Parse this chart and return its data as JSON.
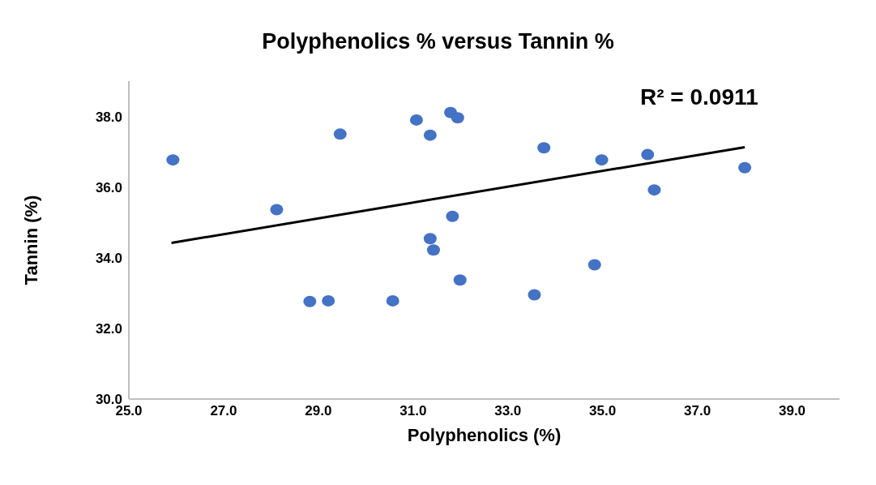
{
  "chart_data": {
    "type": "scatter",
    "title": "Polyphenolics %  versus Tannin %",
    "xlabel": "Polyphenolics (%)",
    "ylabel": "Tannin (%)",
    "annotations": [
      "R² = 0.0911"
    ],
    "series": [
      {
        "color": "#4472c4",
        "marker": "circle",
        "x": [
          25.93,
          28.12,
          28.82,
          29.21,
          29.46,
          30.57,
          31.07,
          31.36,
          31.36,
          31.43,
          31.79,
          31.83,
          31.94,
          31.99,
          33.56,
          33.76,
          34.83,
          34.98,
          35.95,
          36.09,
          38.0
        ],
        "values": [
          36.77,
          35.36,
          32.76,
          32.78,
          37.5,
          32.78,
          37.9,
          37.47,
          34.54,
          34.22,
          38.11,
          35.17,
          37.96,
          33.37,
          32.95,
          37.11,
          33.8,
          36.77,
          36.92,
          35.92,
          36.55
        ]
      },
      {
        "type": "line",
        "color": "#000000",
        "marker": "none",
        "line_style": "solid",
        "x": [
          25.9,
          38.0
        ],
        "values": [
          34.42,
          37.13
        ]
      }
    ],
    "xlim": [
      25,
      40
    ],
    "xticks": [
      {
        "value": 25,
        "label": "25.0"
      },
      {
        "value": 27,
        "label": "27.0"
      },
      {
        "value": 29,
        "label": "29.0"
      },
      {
        "value": 31,
        "label": "31.0"
      },
      {
        "value": 33,
        "label": "33.0"
      },
      {
        "value": 35,
        "label": "35.0"
      },
      {
        "value": 37,
        "label": "37.0"
      },
      {
        "value": 39,
        "label": "39.0"
      }
    ],
    "ylim": [
      30,
      39
    ],
    "yticks": [
      {
        "value": 30,
        "label": "30.0"
      },
      {
        "value": 32,
        "label": "32.0"
      },
      {
        "value": 34,
        "label": "34.0"
      },
      {
        "value": 36,
        "label": "36.0"
      },
      {
        "value": 38,
        "label": "38.0"
      }
    ],
    "grid": false
  }
}
